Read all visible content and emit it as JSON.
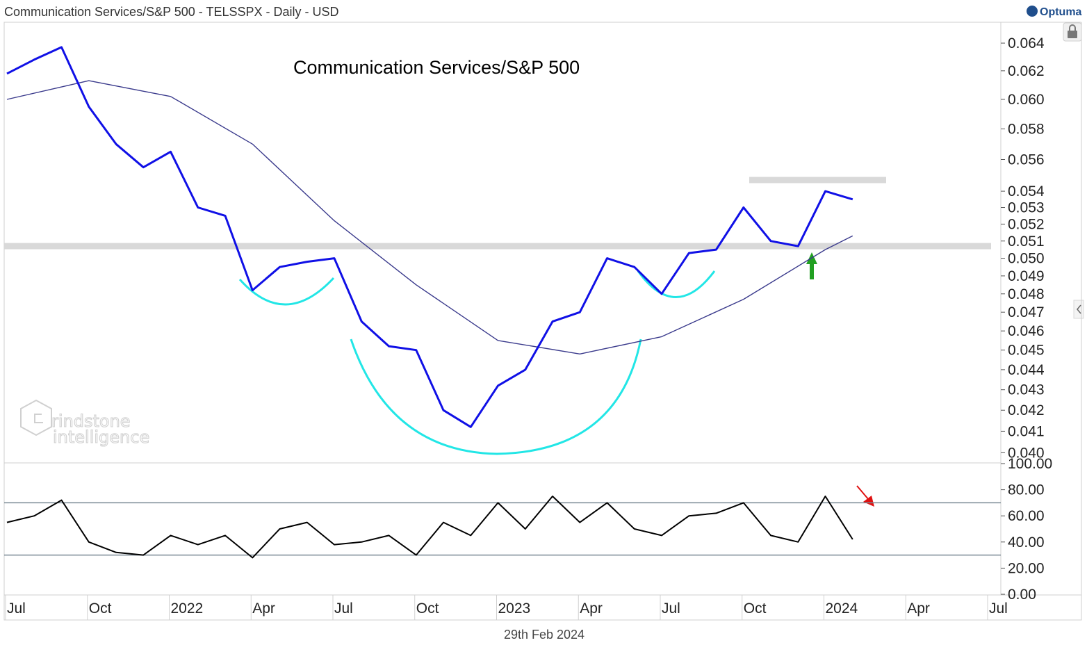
{
  "header": {
    "title": "Communication Services/S&P 500 - TELSSPX - Daily - USD",
    "brand": "Optuma",
    "lock_icon": "lock-icon",
    "collapse_icon": "chevron-left-icon"
  },
  "watermark": {
    "line1": "rindstone",
    "line2": "intelligence",
    "logo_icon": "hexagon-g-logo"
  },
  "footer": {
    "date": "29th Feb 2024"
  },
  "time_axis": {
    "labels": [
      "Jul",
      "Oct",
      "2022",
      "Apr",
      "Jul",
      "Oct",
      "2023",
      "Apr",
      "Jul",
      "Oct",
      "2024",
      "Apr",
      "Jul"
    ]
  },
  "colors": {
    "price_line": "#1010e6",
    "moving_average": "#3a3a8c",
    "rsi_line": "#000000",
    "pattern_arcs": "#22e6e6",
    "support_resistance": "#d9d9d9",
    "up_arrow": "#22a022",
    "down_arrow": "#e01010"
  },
  "chart_data": [
    {
      "type": "line",
      "title": "Communication Services/S&P 500",
      "scale": "log",
      "ylim": [
        0.0396,
        0.0655
      ],
      "y_ticks": [
        "0.064",
        "0.062",
        "0.060",
        "0.058",
        "0.056",
        "0.054",
        "0.053",
        "0.052",
        "0.051",
        "0.050",
        "0.049",
        "0.048",
        "0.047",
        "0.046",
        "0.045",
        "0.044",
        "0.043",
        "0.042",
        "0.041",
        "0.040"
      ],
      "series": [
        {
          "x": [
            "2021-07",
            "2021-08",
            "2021-09",
            "2021-10",
            "2021-11",
            "2021-12",
            "2022-01",
            "2022-02",
            "2022-03",
            "2022-04",
            "2022-05",
            "2022-06",
            "2022-07",
            "2022-08",
            "2022-09",
            "2022-10",
            "2022-11",
            "2022-12",
            "2023-01",
            "2023-02",
            "2023-03",
            "2023-04",
            "2023-05",
            "2023-06",
            "2023-07",
            "2023-08",
            "2023-09",
            "2023-10",
            "2023-11",
            "2023-12",
            "2024-01",
            "2024-02"
          ],
          "values": [
            0.0618,
            0.0628,
            0.0637,
            0.0595,
            0.057,
            0.0555,
            0.0565,
            0.053,
            0.0525,
            0.0482,
            0.0495,
            0.0498,
            0.05,
            0.0465,
            0.0452,
            0.045,
            0.042,
            0.0412,
            0.0432,
            0.044,
            0.0465,
            0.047,
            0.05,
            0.0495,
            0.048,
            0.0503,
            0.0505,
            0.053,
            0.051,
            0.0507,
            0.054,
            0.0535
          ]
        },
        {
          "x": [
            "2021-07",
            "2021-10",
            "2022-01",
            "2022-04",
            "2022-07",
            "2022-10",
            "2023-01",
            "2023-04",
            "2023-07",
            "2023-10",
            "2024-01",
            "2024-02"
          ],
          "values": [
            0.06,
            0.0613,
            0.0602,
            0.057,
            0.0522,
            0.0485,
            0.0455,
            0.0448,
            0.0457,
            0.0477,
            0.0505,
            0.0513
          ]
        }
      ],
      "annotations": {
        "resistance_level": 0.0547,
        "neckline_level": 0.0507
      }
    },
    {
      "type": "line",
      "ylim": [
        0,
        100
      ],
      "y_ticks": [
        "100.00",
        "80.00",
        "60.00",
        "40.00",
        "20.00",
        "0.00"
      ],
      "reference_lines": [
        70,
        30
      ],
      "series": [
        {
          "x": [
            "2021-07",
            "2021-08",
            "2021-09",
            "2021-10",
            "2021-11",
            "2021-12",
            "2022-01",
            "2022-02",
            "2022-03",
            "2022-04",
            "2022-05",
            "2022-06",
            "2022-07",
            "2022-08",
            "2022-09",
            "2022-10",
            "2022-11",
            "2022-12",
            "2023-01",
            "2023-02",
            "2023-03",
            "2023-04",
            "2023-05",
            "2023-06",
            "2023-07",
            "2023-08",
            "2023-09",
            "2023-10",
            "2023-11",
            "2023-12",
            "2024-01",
            "2024-02"
          ],
          "values": [
            55,
            60,
            72,
            40,
            32,
            30,
            45,
            38,
            45,
            28,
            50,
            55,
            38,
            40,
            45,
            30,
            55,
            45,
            70,
            50,
            75,
            55,
            70,
            50,
            45,
            60,
            62,
            70,
            45,
            40,
            75,
            42
          ]
        }
      ]
    }
  ]
}
